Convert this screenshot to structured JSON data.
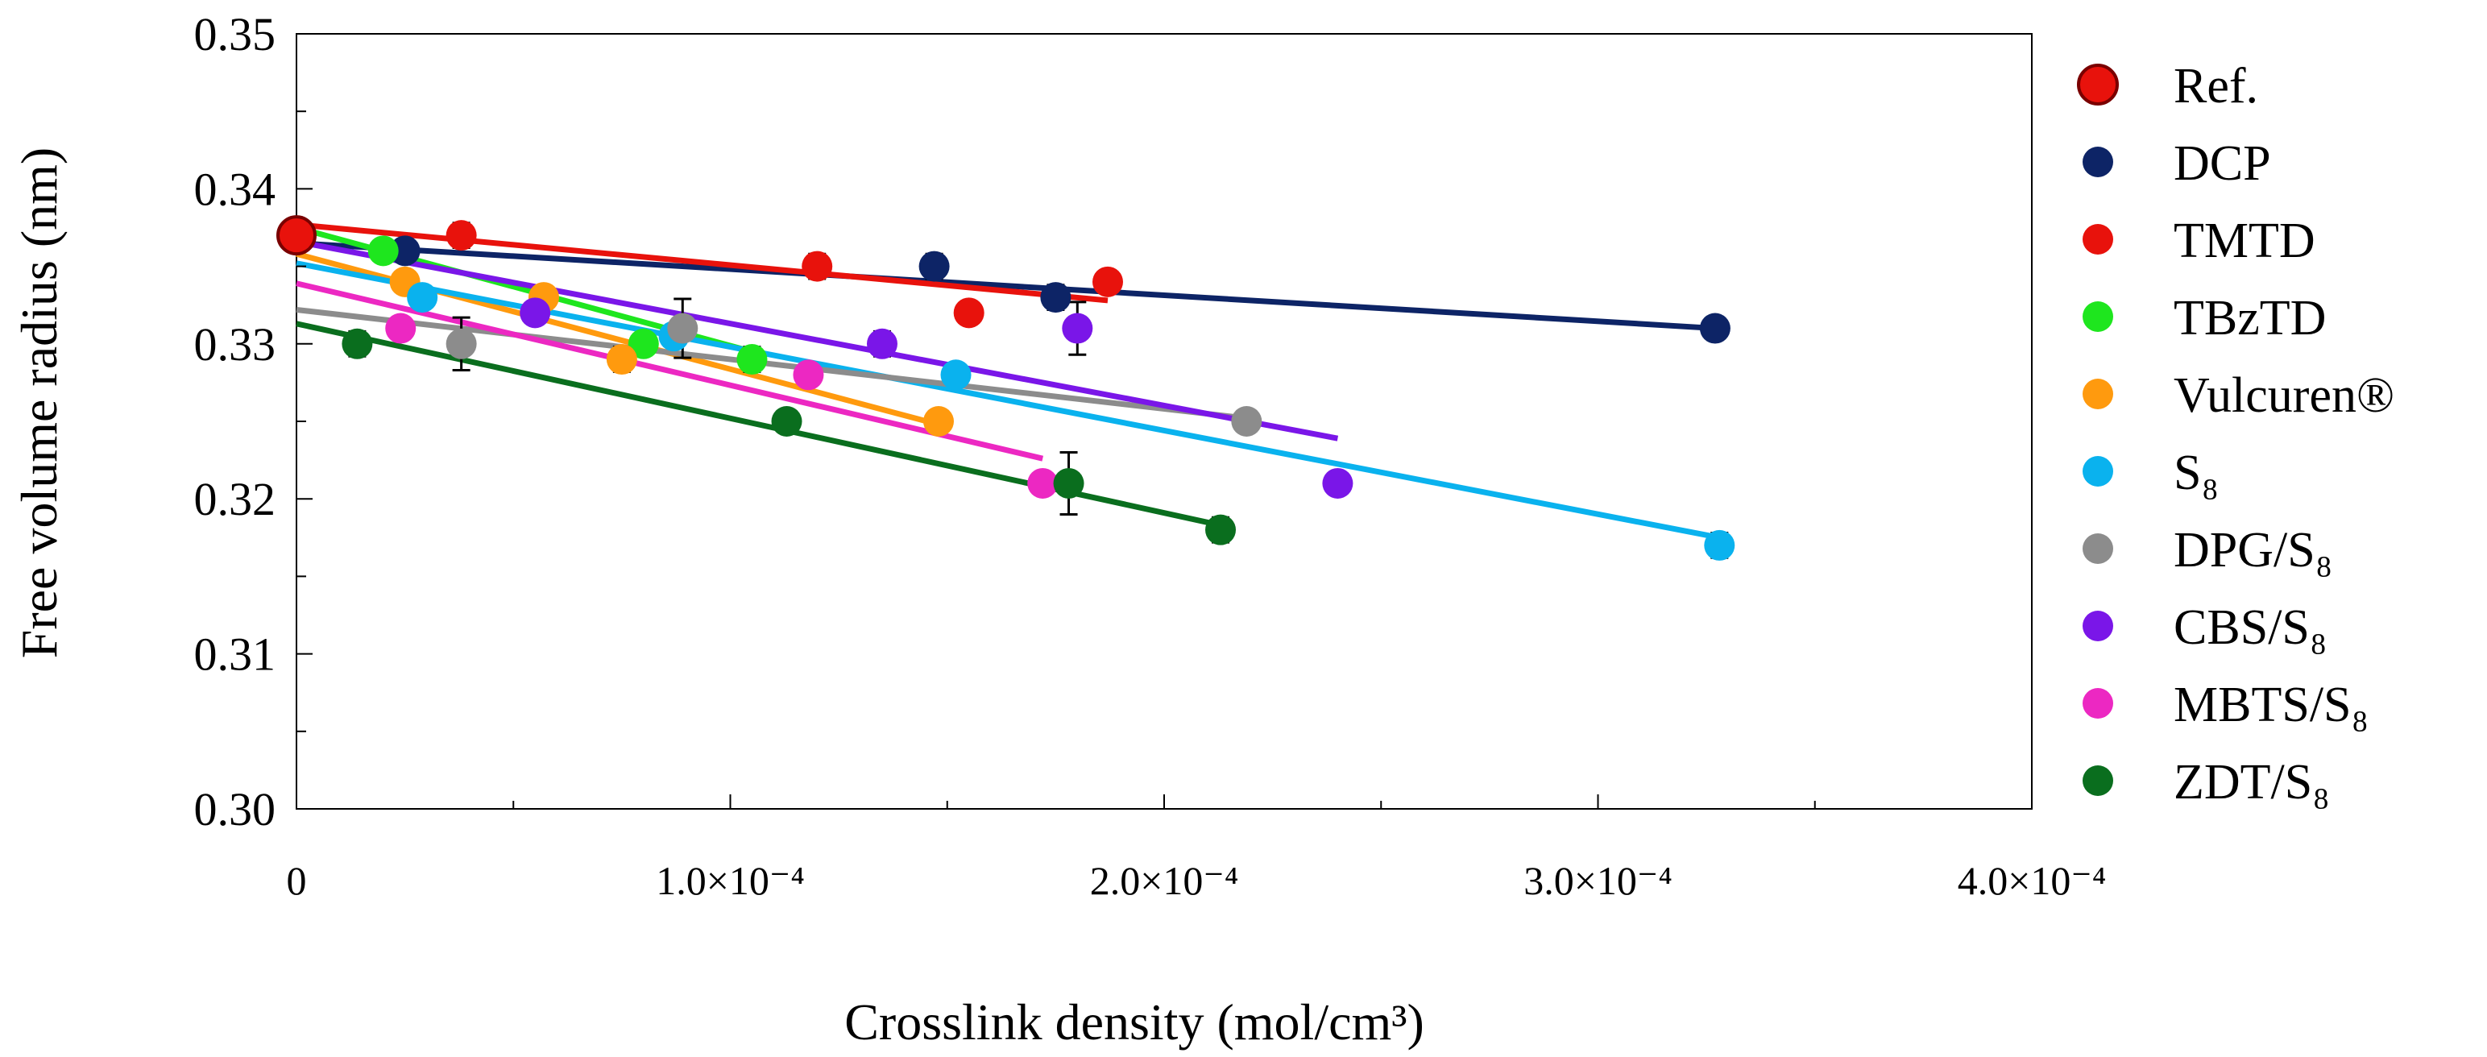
{
  "chart_data": {
    "type": "scatter",
    "xlabel": "Crosslink density (mol/cm³)",
    "ylabel": "Free volume radius (nm)",
    "xlim": [
      0,
      0.0004
    ],
    "ylim": [
      0.3,
      0.35
    ],
    "x_ticks": [
      0,
      0.0001,
      0.0002,
      0.0003,
      0.0004
    ],
    "x_tick_labels": [
      "0",
      "1.0×10⁻⁴",
      "2.0×10⁻⁴",
      "3.0×10⁻⁴",
      "4.0×10⁻⁴"
    ],
    "y_ticks": [
      0.3,
      0.31,
      0.32,
      0.33,
      0.34,
      0.35
    ],
    "y_tick_labels": [
      "0.30",
      "0.31",
      "0.32",
      "0.33",
      "0.34",
      "0.35"
    ],
    "grid": false,
    "legend_position": "right",
    "series": [
      {
        "name": "Ref.",
        "color": "#e8120c",
        "outline": "#7a0000",
        "large": true,
        "points": [
          {
            "x": 0,
            "y": 0.337,
            "err": 0
          }
        ],
        "fit": null
      },
      {
        "name": "DCP",
        "color": "#0d2466",
        "points": [
          {
            "x": 2.5e-05,
            "y": 0.336,
            "err": 0
          },
          {
            "x": 0.000147,
            "y": 0.335,
            "err": 0.0008
          },
          {
            "x": 0.000175,
            "y": 0.333,
            "err": 0.0008
          },
          {
            "x": 0.000327,
            "y": 0.331,
            "err": 0.0007
          }
        ],
        "fit": [
          [
            0,
            0.3365
          ],
          [
            0.000327,
            0.331
          ]
        ]
      },
      {
        "name": "TMTD",
        "color": "#e8120c",
        "points": [
          {
            "x": 3.8e-05,
            "y": 0.337,
            "err": 0.0008
          },
          {
            "x": 0.00012,
            "y": 0.335,
            "err": 0.0008
          },
          {
            "x": 0.000155,
            "y": 0.332,
            "err": 0.0005
          },
          {
            "x": 0.000187,
            "y": 0.334,
            "err": 0.0007
          }
        ],
        "fit": [
          [
            0,
            0.3377
          ],
          [
            0.000187,
            0.3328
          ]
        ]
      },
      {
        "name": "TBzTD",
        "color": "#1ee61e",
        "points": [
          {
            "x": 2e-05,
            "y": 0.336,
            "err": 0
          },
          {
            "x": 8e-05,
            "y": 0.33,
            "err": 0
          },
          {
            "x": 0.000105,
            "y": 0.329,
            "err": 0.0008
          }
        ],
        "fit": [
          [
            0,
            0.3375
          ],
          [
            0.000105,
            0.3295
          ]
        ]
      },
      {
        "name": "Vulcuren®",
        "color": "#ff9a0e",
        "points": [
          {
            "x": 2.5e-05,
            "y": 0.334,
            "err": 0
          },
          {
            "x": 5.7e-05,
            "y": 0.333,
            "err": 0
          },
          {
            "x": 7.5e-05,
            "y": 0.329,
            "err": 0.0008
          },
          {
            "x": 0.000148,
            "y": 0.325,
            "err": 0
          }
        ],
        "fit": [
          [
            0,
            0.3358
          ],
          [
            0.000148,
            0.3248
          ]
        ]
      },
      {
        "name": "S₈",
        "color": "#0ab2ee",
        "points": [
          {
            "x": 2.9e-05,
            "y": 0.333,
            "err": 0
          },
          {
            "x": 8.7e-05,
            "y": 0.3305,
            "err": 0
          },
          {
            "x": 0.000152,
            "y": 0.328,
            "err": 0
          },
          {
            "x": 0.000328,
            "y": 0.317,
            "err": 0.0008
          }
        ],
        "fit": [
          [
            0,
            0.3352
          ],
          [
            0.000328,
            0.3175
          ]
        ]
      },
      {
        "name": "DPG/S₈",
        "color": "#8c8c8c",
        "points": [
          {
            "x": 3.8e-05,
            "y": 0.33,
            "err": 0.0017
          },
          {
            "x": 8.9e-05,
            "y": 0.331,
            "err": 0.0019
          },
          {
            "x": 0.000219,
            "y": 0.325,
            "err": 0.0007
          }
        ],
        "fit": [
          [
            0,
            0.3322
          ],
          [
            0.000219,
            0.3252
          ]
        ]
      },
      {
        "name": "CBS/S₈",
        "color": "#7a16e8",
        "points": [
          {
            "x": 5.5e-05,
            "y": 0.332,
            "err": 0
          },
          {
            "x": 0.000135,
            "y": 0.33,
            "err": 0.0008
          },
          {
            "x": 0.00018,
            "y": 0.331,
            "err": 0.0017
          },
          {
            "x": 0.00024,
            "y": 0.321,
            "err": 0.0007
          }
        ],
        "fit": [
          [
            0,
            0.3366
          ],
          [
            0.00024,
            0.3239
          ]
        ]
      },
      {
        "name": "MBTS/S₈",
        "color": "#ec28c2",
        "points": [
          {
            "x": 2.4e-05,
            "y": 0.331,
            "err": 0
          },
          {
            "x": 0.000118,
            "y": 0.328,
            "err": 0
          },
          {
            "x": 0.000172,
            "y": 0.321,
            "err": 0.0007
          }
        ],
        "fit": [
          [
            0,
            0.3339
          ],
          [
            0.000172,
            0.3226
          ]
        ]
      },
      {
        "name": "ZDT/S₈",
        "color": "#0a6e1e",
        "points": [
          {
            "x": 1.4e-05,
            "y": 0.33,
            "err": 0.0008
          },
          {
            "x": 0.000113,
            "y": 0.325,
            "err": 0
          },
          {
            "x": 0.000178,
            "y": 0.321,
            "err": 0.002
          },
          {
            "x": 0.000213,
            "y": 0.318,
            "err": 0.0008
          }
        ],
        "fit": [
          [
            0,
            0.3313
          ],
          [
            0.000213,
            0.3183
          ]
        ]
      }
    ]
  }
}
